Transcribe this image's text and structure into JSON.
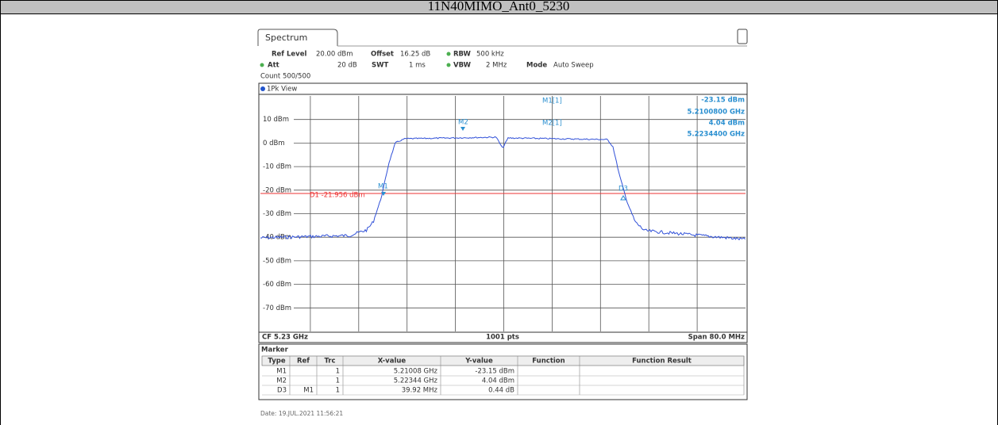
{
  "header": {
    "title": "11N40MIMO_Ant0_5230"
  },
  "tab": "Spectrum",
  "settings": {
    "ref_level_label": "Ref Level",
    "ref_level": "20.00 dBm",
    "offset_label": "Offset",
    "offset": "16.25 dB",
    "rbw_label": "RBW",
    "rbw": "500 kHz",
    "att_label": "Att",
    "att": "20 dB",
    "swt_label": "SWT",
    "swt": "1 ms",
    "vbw_label": "VBW",
    "vbw": "2 MHz",
    "mode_label": "Mode",
    "mode": "Auto Sweep",
    "count": "Count 500/500"
  },
  "view": "1Pk View",
  "y_labels": [
    "10 dBm",
    "0 dBm",
    "-10 dBm",
    "-20 dBm",
    "-30 dBm",
    "-40 dBm",
    "-50 dBm",
    "-60 dBm",
    "-70 dBm"
  ],
  "readout": {
    "m1_name": "M1[1]",
    "m1_level": "-23.15 dBm",
    "m1_freq": "5.2100800 GHz",
    "m2_name": "M2[1]",
    "m2_level": "4.04 dBm",
    "m2_freq": "5.2234400 GHz"
  },
  "display_line": "D1  -21.956 dBm",
  "markers": [
    "M1",
    "M2",
    "D3"
  ],
  "footer_bar": {
    "cf": "CF 5.23 GHz",
    "points": "1001 pts",
    "span": "Span 80.0 MHz"
  },
  "marker_table": {
    "title": "Marker",
    "columns": [
      "Type",
      "Ref",
      "Trc",
      "X-value",
      "Y-value",
      "Function",
      "Function Result"
    ],
    "rows": [
      {
        "type": "M1",
        "trc": "1",
        "x": "5.21008 GHz",
        "y": "-23.15 dBm"
      },
      {
        "type": "M2",
        "trc": "1",
        "x": "5.22344 GHz",
        "y": "4.04 dBm"
      },
      {
        "type": "D3",
        "ref": "M1",
        "trc": "1",
        "x": "39.92 MHz",
        "y": "0.44 dB"
      }
    ]
  },
  "date": "Date: 19.JUL.2021  11:56:21"
}
